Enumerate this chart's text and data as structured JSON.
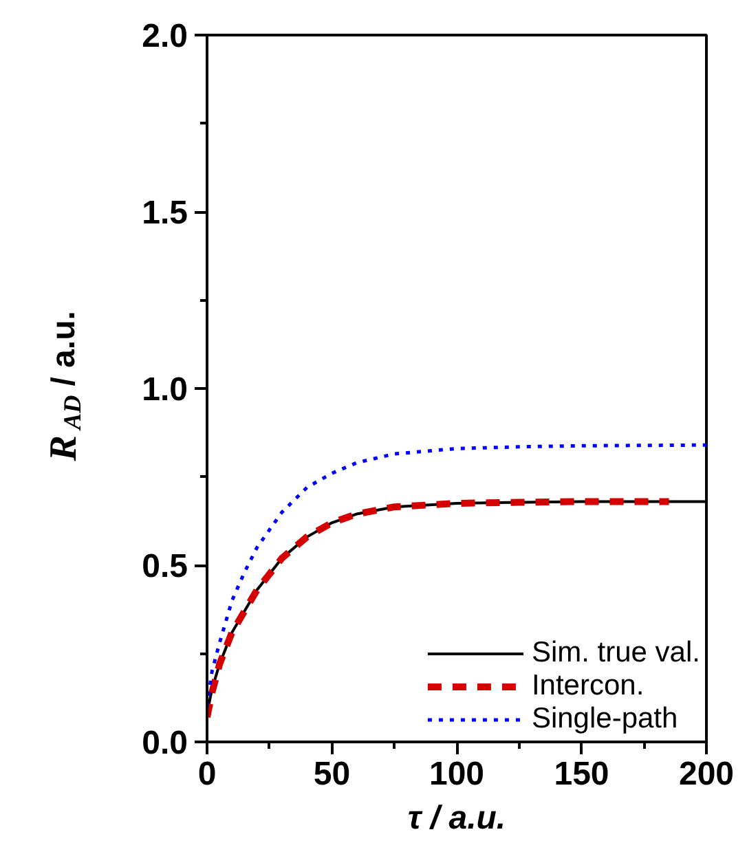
{
  "chart_data": {
    "type": "line",
    "xlabel": "τ / a.u.",
    "ylabel": "R⃖$_{AD}$ / a.u.",
    "xlim": [
      0,
      200
    ],
    "ylim": [
      0,
      2.0
    ],
    "xticks": [
      0,
      50,
      100,
      150,
      200
    ],
    "yticks": [
      {
        "value": 0,
        "label": "0.0"
      },
      0.5,
      {
        "value": 1,
        "label": "1.0"
      },
      1.5,
      {
        "value": 2,
        "label": "2.0"
      }
    ],
    "grid": false,
    "legend": "bottom right",
    "series": [
      {
        "name": "Sim. true val.",
        "color": "#000000",
        "line_style": "solid",
        "x": [
          0,
          2,
          5,
          10,
          15,
          20,
          30,
          40,
          50,
          60,
          75,
          100,
          125,
          150,
          200
        ],
        "values": [
          0.08,
          0.15,
          0.22,
          0.31,
          0.37,
          0.43,
          0.52,
          0.58,
          0.62,
          0.645,
          0.665,
          0.675,
          0.678,
          0.68,
          0.68
        ]
      },
      {
        "name": "Intercon.",
        "color": "#d40000",
        "line_style": "dashed",
        "x": [
          0,
          2,
          5,
          10,
          15,
          20,
          30,
          40,
          50,
          60,
          75,
          100,
          125,
          150,
          185
        ],
        "values": [
          0.07,
          0.14,
          0.22,
          0.31,
          0.37,
          0.43,
          0.52,
          0.58,
          0.62,
          0.645,
          0.665,
          0.675,
          0.678,
          0.68,
          0.68
        ]
      },
      {
        "name": "Single-path",
        "color": "#0000ff",
        "line_style": "dotted",
        "x": [
          0,
          2,
          5,
          10,
          15,
          20,
          30,
          40,
          50,
          60,
          75,
          100,
          125,
          150,
          200
        ],
        "values": [
          0.1,
          0.2,
          0.28,
          0.4,
          0.48,
          0.55,
          0.65,
          0.72,
          0.76,
          0.79,
          0.815,
          0.83,
          0.835,
          0.838,
          0.84
        ]
      }
    ]
  }
}
